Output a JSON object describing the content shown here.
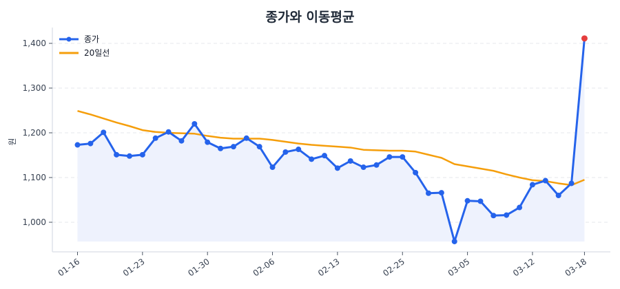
{
  "chart_data": {
    "type": "line",
    "title": "종가와 이동평균",
    "xlabel": "",
    "ylabel": "원",
    "ylim": [
      940,
      1440
    ],
    "yticks": [
      1000,
      1100,
      1200,
      1300,
      1400
    ],
    "ytick_labels": [
      "1,000",
      "1,100",
      "1,200",
      "1,300",
      "1,400"
    ],
    "xtick_labels": [
      "01-16",
      "01-23",
      "01-30",
      "02-06",
      "02-13",
      "02-25",
      "03-05",
      "03-12",
      "03-18"
    ],
    "xtick_indices": [
      0,
      5,
      10,
      15,
      20,
      25,
      30,
      35,
      39
    ],
    "grid": "y-dashed",
    "legend_position": "upper left",
    "series": [
      {
        "name": "종가",
        "color": "#2563eb",
        "marker": "circle",
        "fill": "#eef2fd",
        "values": [
          1173,
          1176,
          1201,
          1151,
          1148,
          1151,
          1188,
          1202,
          1182,
          1220,
          1179,
          1165,
          1169,
          1188,
          1169,
          1123,
          1157,
          1163,
          1141,
          1149,
          1121,
          1137,
          1123,
          1128,
          1146,
          1146,
          1111,
          1065,
          1066,
          957,
          1048,
          1047,
          1015,
          1016,
          1033,
          1084,
          1093,
          1060,
          1087,
          1411
        ],
        "highlight_last": {
          "color": "#e53e3e",
          "value": 1411
        }
      },
      {
        "name": "20일선",
        "color": "#f59e0b",
        "values": [
          1249,
          1241,
          1232,
          1223,
          1215,
          1206,
          1202,
          1200,
          1199,
          1198,
          1193,
          1189,
          1187,
          1187,
          1187,
          1184,
          1180,
          1176,
          1173,
          1171,
          1169,
          1167,
          1162,
          1161,
          1160,
          1160,
          1158,
          1151,
          1144,
          1130,
          1125,
          1120,
          1115,
          1107,
          1100,
          1094,
          1092,
          1087,
          1083,
          1095
        ]
      }
    ]
  },
  "legend": {
    "items": [
      "종가",
      "20일선"
    ]
  }
}
